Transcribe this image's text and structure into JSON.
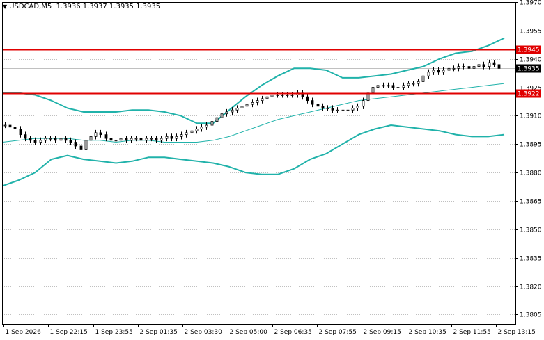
{
  "header": {
    "menu_icon": "triangle-down-icon",
    "text": "USDCAD,M5  1.3936 1.3937 1.3935 1.3935"
  },
  "colors": {
    "background": "#ffffff",
    "frame": "#000000",
    "grid": "#c0c0c0",
    "candle": "#000000",
    "band": "#20b2aa",
    "middle_band": "#20b2aa",
    "level_line": "#e00000",
    "level_label_bg": "#e00000",
    "bid_line": "#c0c0c0",
    "bid_label_bg": "#000000"
  },
  "chart_data": {
    "type": "candlestick",
    "symbol": "USDCAD",
    "timeframe": "M5",
    "ohlc_header": {
      "open": 1.3936,
      "high": 1.3937,
      "low": 1.3935,
      "close": 1.3935
    },
    "ylim": [
      1.38,
      1.397
    ],
    "y_ticks": [
      "1.3970",
      "1.3955",
      "1.3940",
      "1.3925",
      "1.3910",
      "1.3895",
      "1.3880",
      "1.3865",
      "1.3850",
      "1.3835",
      "1.3820",
      "1.3805"
    ],
    "x_ticks": [
      "1 Sep 2026",
      "1 Sep 22:15",
      "1 Sep 23:55",
      "2 Sep 01:35",
      "2 Sep 03:30",
      "2 Sep 05:00",
      "2 Sep 06:35",
      "2 Sep 07:55",
      "2 Sep 09:15",
      "2 Sep 10:35",
      "2 Sep 11:55",
      "2 Sep 13:15"
    ],
    "vertical_marker_index": 1.5,
    "levels": [
      {
        "value": 1.3945,
        "label": "1.3945"
      },
      {
        "value": 1.3922,
        "label": "1.3922"
      }
    ],
    "bid": {
      "value": 1.3935,
      "label": "1.3935"
    },
    "closes": [
      1.3905,
      1.3904,
      1.3903,
      1.39,
      1.3898,
      1.3897,
      1.3896,
      1.3897,
      1.3898,
      1.3898,
      1.3897,
      1.3898,
      1.3897,
      1.3896,
      1.3894,
      1.3892,
      1.3897,
      1.3899,
      1.3901,
      1.39,
      1.3898,
      1.3897,
      1.3897,
      1.3898,
      1.3897,
      1.3898,
      1.3898,
      1.3897,
      1.3898,
      1.3898,
      1.3897,
      1.3898,
      1.3899,
      1.3898,
      1.3899,
      1.39,
      1.3901,
      1.3902,
      1.3903,
      1.3904,
      1.3905,
      1.3907,
      1.3909,
      1.3911,
      1.3912,
      1.3913,
      1.3914,
      1.3915,
      1.3916,
      1.3917,
      1.3918,
      1.3919,
      1.392,
      1.3921,
      1.3921,
      1.3921,
      1.3921,
      1.3921,
      1.3922,
      1.392,
      1.3918,
      1.3916,
      1.3915,
      1.3914,
      1.3914,
      1.3913,
      1.3913,
      1.3913,
      1.3913,
      1.3914,
      1.3915,
      1.3918,
      1.3922,
      1.3925,
      1.3926,
      1.3926,
      1.3926,
      1.3925,
      1.3925,
      1.3926,
      1.3927,
      1.3927,
      1.3928,
      1.3931,
      1.3933,
      1.3934,
      1.3933,
      1.3934,
      1.3935,
      1.3935,
      1.3936,
      1.3936,
      1.3935,
      1.3936,
      1.3937,
      1.3936,
      1.3938,
      1.3937,
      1.3935
    ],
    "upper_band": [
      1.3922,
      1.3922,
      1.3921,
      1.3918,
      1.3914,
      1.3912,
      1.3912,
      1.3912,
      1.3913,
      1.3913,
      1.3912,
      1.391,
      1.3906,
      1.3906,
      1.3913,
      1.392,
      1.3926,
      1.3931,
      1.3935,
      1.3935,
      1.3934,
      1.393,
      1.393,
      1.3931,
      1.3932,
      1.3934,
      1.3936,
      1.394,
      1.3943,
      1.3944,
      1.3947,
      1.3951
    ],
    "middle_band": [
      1.3896,
      1.3897,
      1.3898,
      1.3898,
      1.3898,
      1.3897,
      1.3897,
      1.3896,
      1.3897,
      1.3897,
      1.3896,
      1.3896,
      1.3896,
      1.3897,
      1.3899,
      1.3902,
      1.3905,
      1.3908,
      1.391,
      1.3912,
      1.3914,
      1.3916,
      1.3918,
      1.3919,
      1.392,
      1.3921,
      1.3922,
      1.3923,
      1.3924,
      1.3925,
      1.3926,
      1.3927
    ],
    "lower_band": [
      1.3873,
      1.3876,
      1.388,
      1.3887,
      1.3889,
      1.3887,
      1.3886,
      1.3885,
      1.3886,
      1.3888,
      1.3888,
      1.3887,
      1.3886,
      1.3885,
      1.3883,
      1.388,
      1.3879,
      1.3879,
      1.3882,
      1.3887,
      1.389,
      1.3895,
      1.39,
      1.3903,
      1.3905,
      1.3904,
      1.3903,
      1.3902,
      1.39,
      1.3899,
      1.3899,
      1.39
    ]
  }
}
